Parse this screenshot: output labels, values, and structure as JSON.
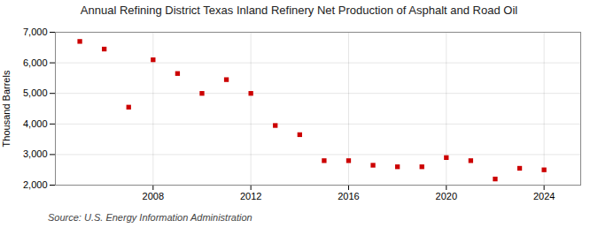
{
  "chart_data": {
    "type": "scatter",
    "title": "Annual Refining District Texas Inland Refinery Net Production of Asphalt and Road Oil",
    "ylabel": "Thousand Barrels",
    "annotations": [
      "Source: U.S. Energy Information Administration"
    ],
    "x": [
      2005,
      2006,
      2007,
      2008,
      2009,
      2010,
      2011,
      2012,
      2013,
      2014,
      2015,
      2016,
      2017,
      2018,
      2019,
      2020,
      2021,
      2022,
      2023,
      2024
    ],
    "values": [
      6700,
      6450,
      4550,
      6100,
      5650,
      5000,
      5450,
      5000,
      3950,
      3650,
      2800,
      2800,
      2650,
      2600,
      2600,
      2900,
      2800,
      2200,
      2550,
      2500
    ],
    "color": "#cc0000",
    "marker": "square",
    "xlim": [
      2004,
      2025.5
    ],
    "xticks": [
      2008,
      2012,
      2016,
      2020,
      2024
    ],
    "ylim": [
      2000,
      7000
    ],
    "yticks": [
      {
        "value": 2000,
        "label": "2,000"
      },
      {
        "value": 3000,
        "label": "3,000"
      },
      {
        "value": 4000,
        "label": "4,000"
      },
      {
        "value": 5000,
        "label": "5,000"
      },
      {
        "value": 6000,
        "label": "6,000"
      },
      {
        "value": 7000,
        "label": "7,000"
      }
    ],
    "grid": true
  }
}
